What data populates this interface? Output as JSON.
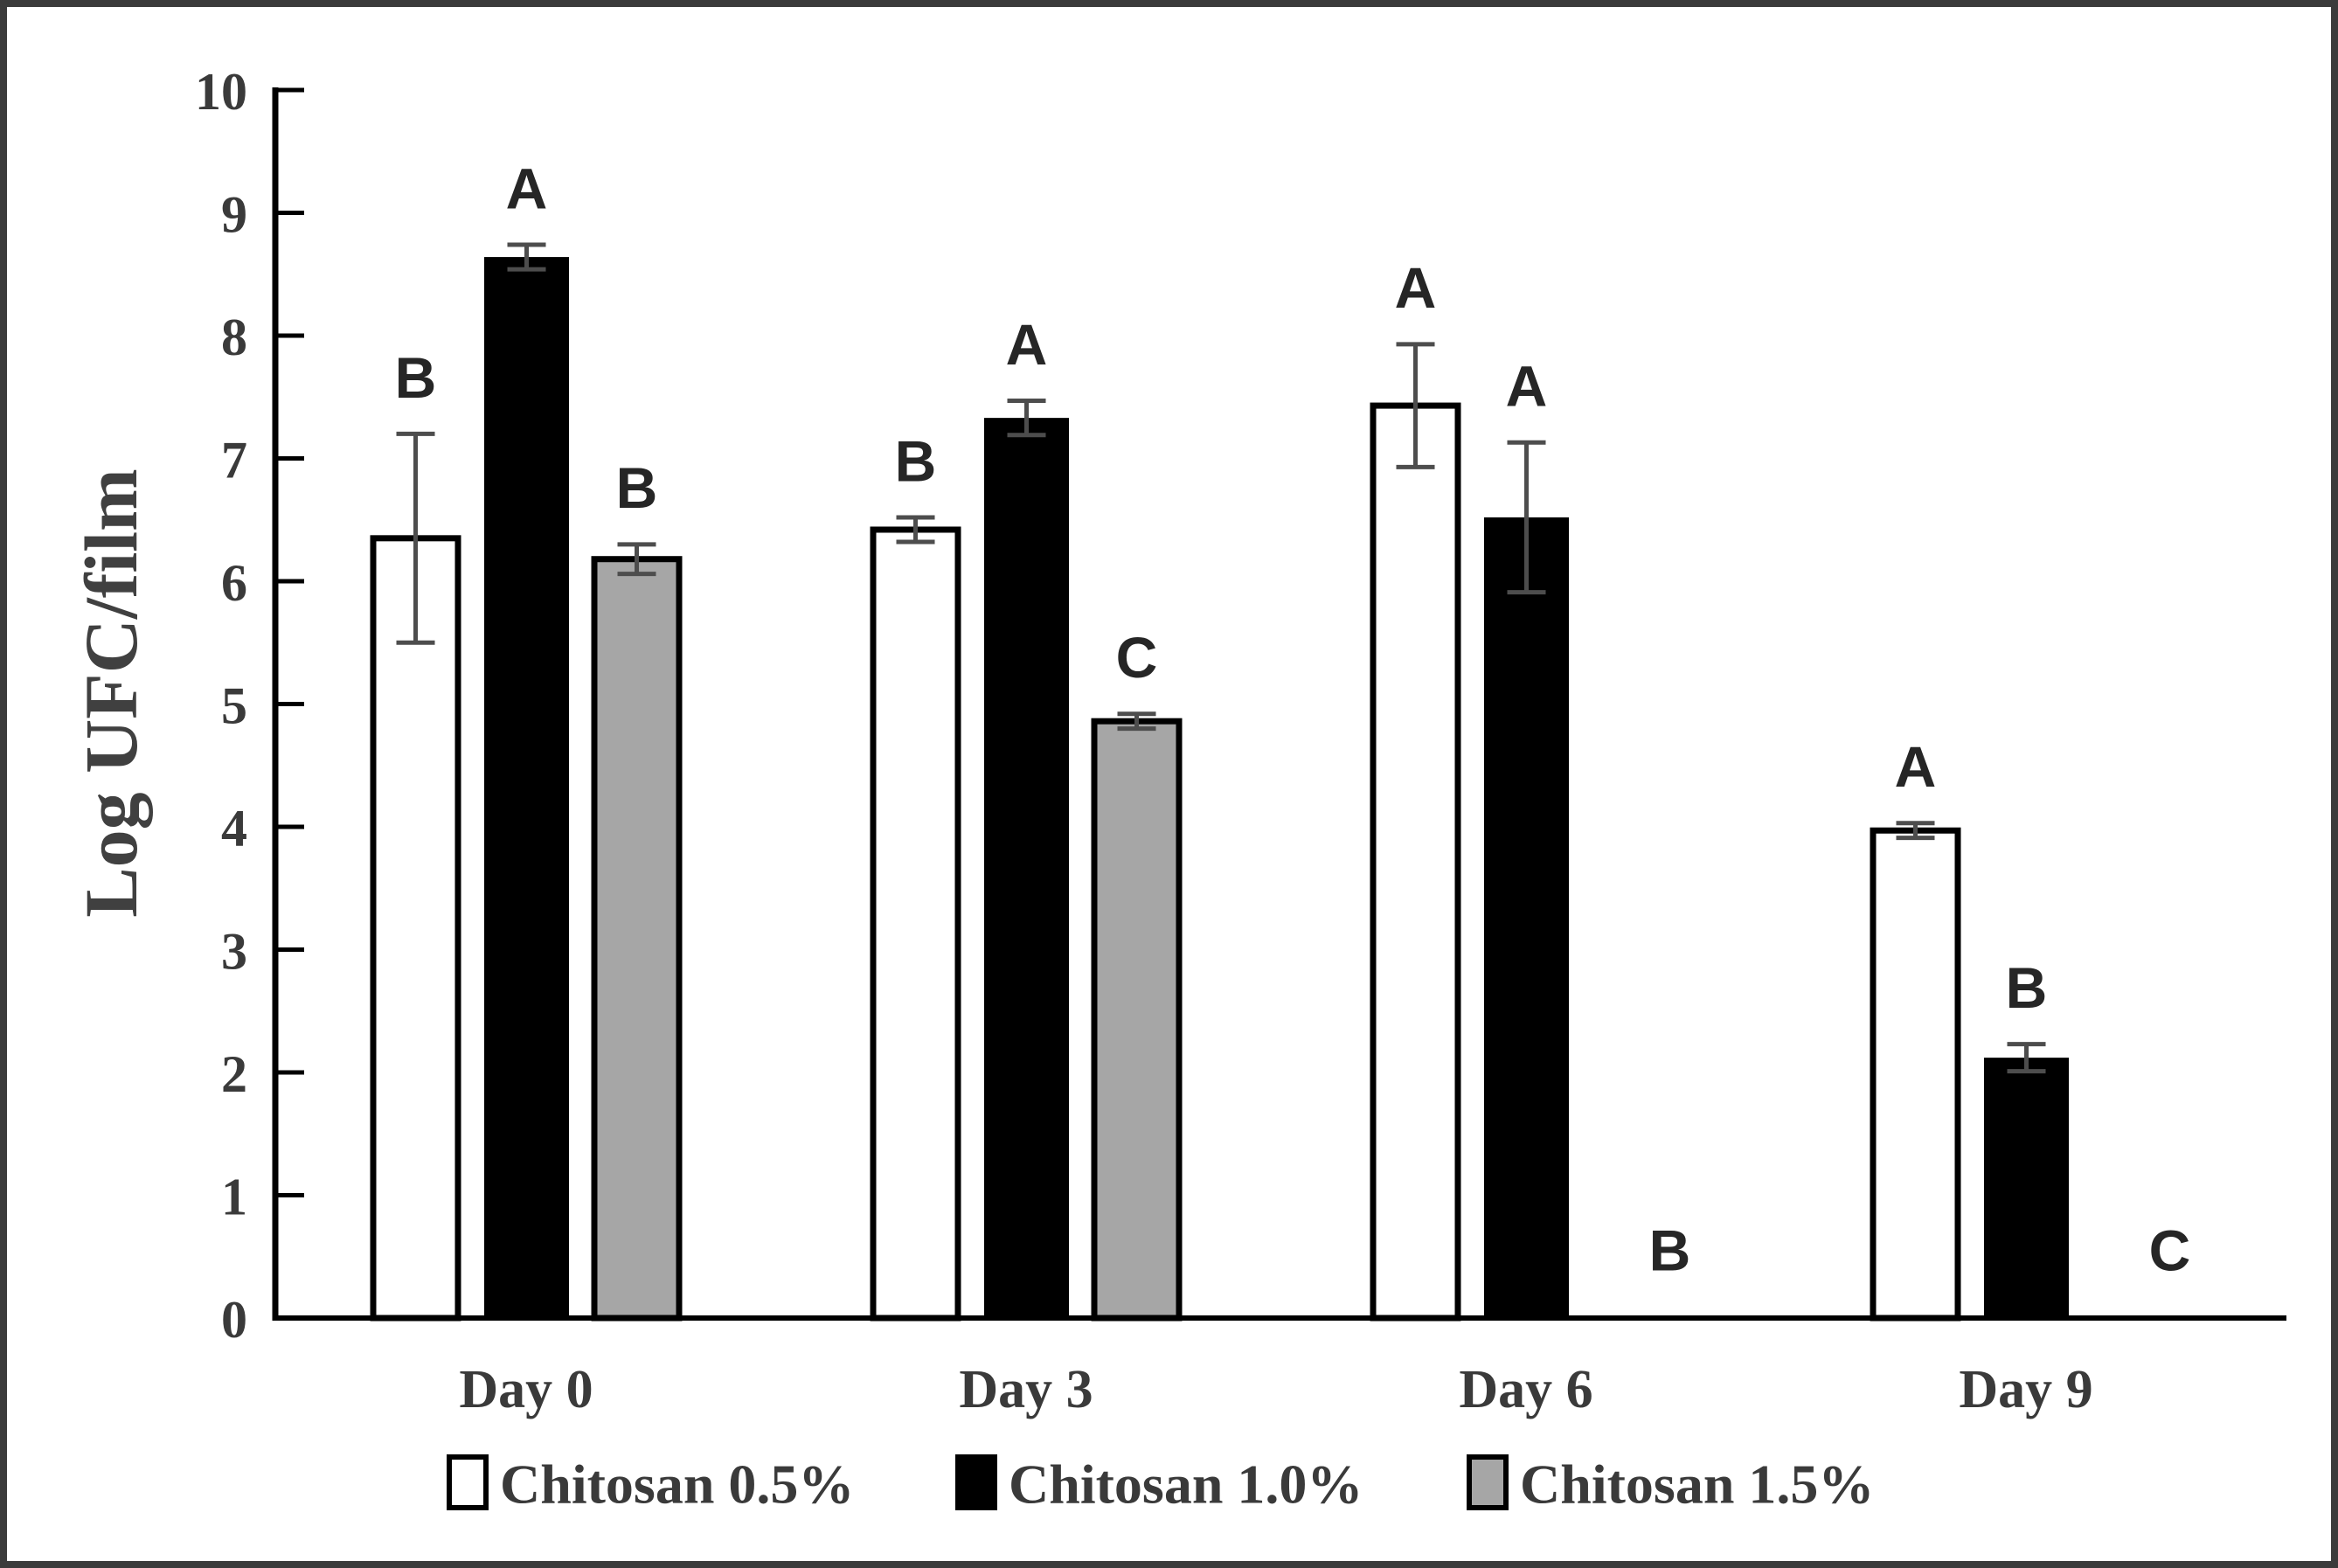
{
  "figure": {
    "background_color": "#ffffff",
    "frame_border_color": "#3b3b3b",
    "axis_color": "#000000",
    "error_bar_color": "#4d4d4d",
    "text_color": "#3a3a3a"
  },
  "chart_data": {
    "type": "bar",
    "title": "",
    "xlabel": "",
    "ylabel": "Log UFC/film",
    "ylim": [
      0,
      10
    ],
    "ytick_step": 1,
    "ytick_labels": [
      "0",
      "1",
      "2",
      "3",
      "4",
      "5",
      "6",
      "7",
      "8",
      "9",
      "10"
    ],
    "grid": false,
    "legend_position": "bottom",
    "categories": [
      "Day 0",
      "Day 3",
      "Day 6",
      "Day 9"
    ],
    "series": [
      {
        "name": "Chitosan 0.5%",
        "fill": "#ffffff",
        "stroke": "#000000",
        "values": [
          6.35,
          6.42,
          7.43,
          3.97
        ],
        "errors": [
          0.85,
          0.1,
          0.5,
          0.06
        ],
        "letters": [
          "B",
          "B",
          "A",
          "A"
        ]
      },
      {
        "name": "Chitosan 1.0%",
        "fill": "#000000",
        "stroke": "#000000",
        "values": [
          8.64,
          7.33,
          6.52,
          2.12
        ],
        "errors": [
          0.1,
          0.14,
          0.61,
          0.11
        ],
        "letters": [
          "A",
          "A",
          "A",
          "B"
        ]
      },
      {
        "name": "Chitosan 1.5%",
        "fill": "#a6a6a6",
        "stroke": "#000000",
        "values": [
          6.18,
          4.86,
          null,
          null
        ],
        "errors": [
          0.12,
          0.06,
          null,
          null
        ],
        "letters": [
          "B",
          "C",
          "B",
          "C"
        ]
      }
    ]
  }
}
